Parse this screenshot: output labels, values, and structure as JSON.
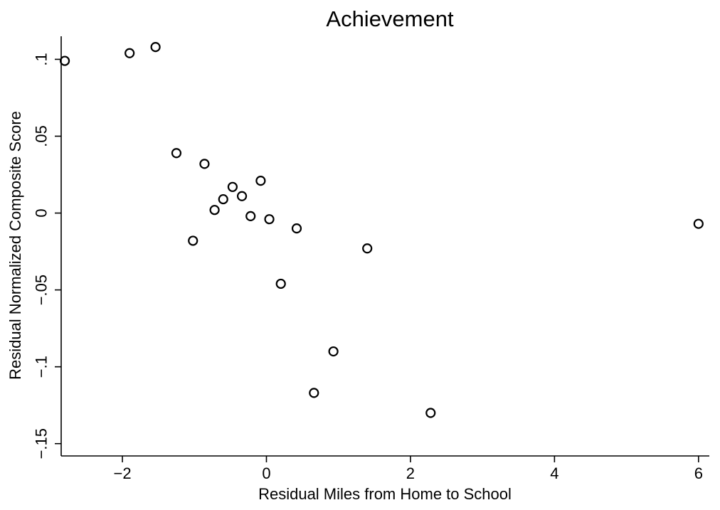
{
  "chart_data": {
    "type": "scatter",
    "title": "Achievement",
    "xlabel": "Residual Miles from Home to School",
    "ylabel": "Residual Normalized Composite Score",
    "xlim": [
      -2.85,
      6.15
    ],
    "ylim": [
      -0.158,
      0.115
    ],
    "xticks": [
      -2,
      0,
      2,
      4,
      6
    ],
    "xtick_labels": [
      "−2",
      "0",
      "2",
      "4",
      "6"
    ],
    "yticks": [
      -0.15,
      -0.1,
      -0.05,
      0,
      0.05,
      0.1
    ],
    "ytick_labels": [
      "−.15",
      "−.1",
      "−.05",
      "0",
      ".05",
      ".1"
    ],
    "grid": false,
    "legend": "none",
    "marker": "hollow-circle",
    "series": [
      {
        "x": [
          -2.8,
          -1.9,
          -1.54,
          -1.25,
          -0.86,
          -1.02,
          -0.72,
          -0.6,
          -0.47,
          -0.34,
          -0.22,
          -0.08,
          0.04,
          0.42,
          0.2,
          1.4,
          0.93,
          0.66,
          2.28,
          6.0
        ],
        "y": [
          0.099,
          0.104,
          0.108,
          0.039,
          0.032,
          -0.018,
          0.002,
          0.009,
          0.017,
          0.011,
          -0.002,
          0.021,
          -0.004,
          -0.01,
          -0.046,
          -0.023,
          -0.09,
          -0.117,
          -0.13,
          -0.007
        ]
      }
    ]
  }
}
